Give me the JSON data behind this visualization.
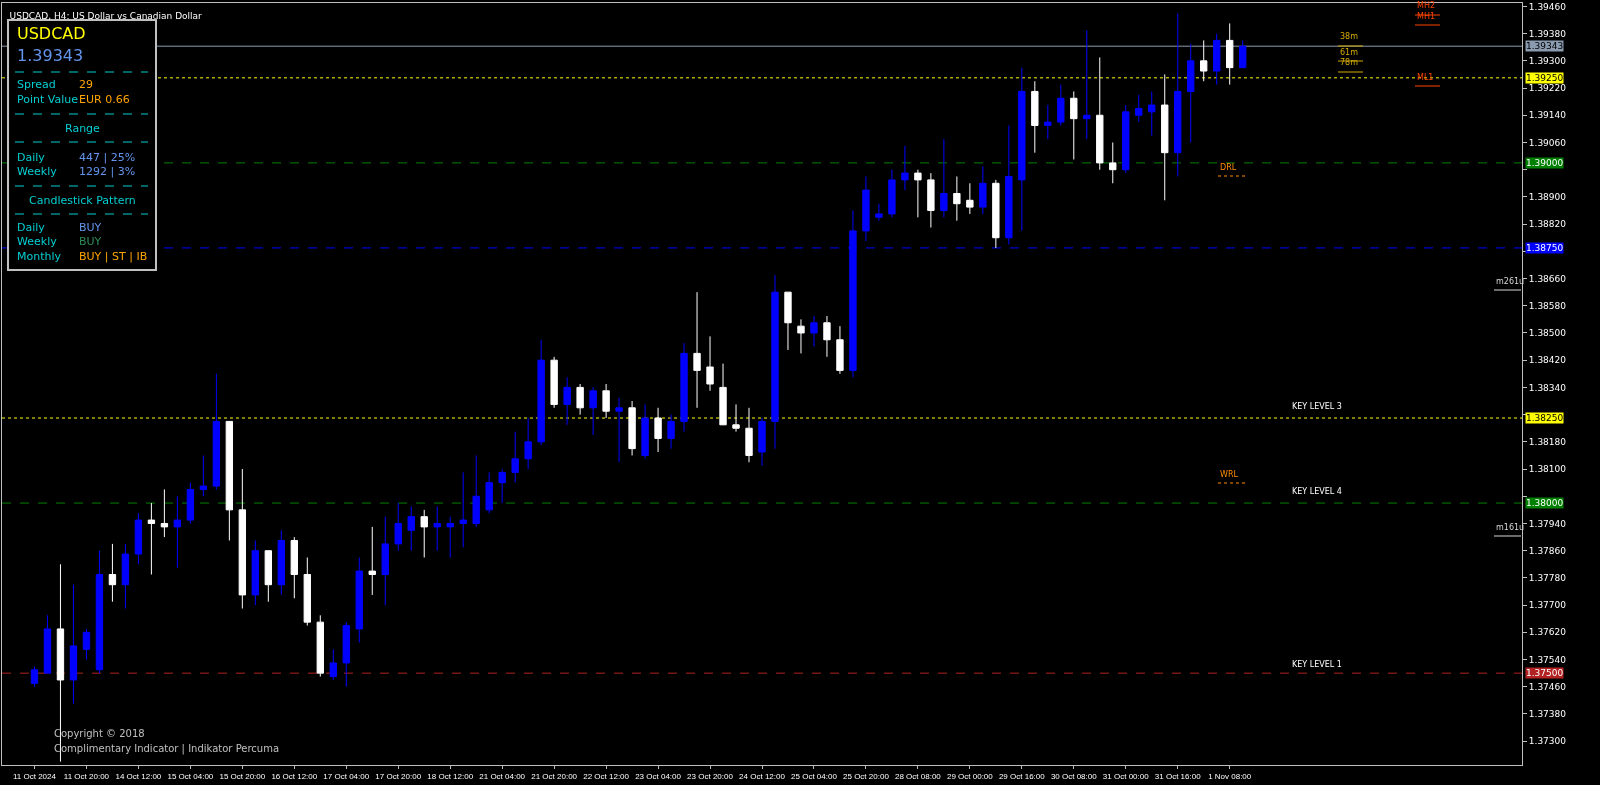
{
  "chart_data": {
    "type": "candlestick",
    "title": "USDCAD, H4: US Dollar vs Canadian Dollar",
    "categories": [
      "11 Oct 2024",
      null,
      null,
      null,
      "11 Oct 20:00",
      null,
      null,
      null,
      "14 Oct 12:00",
      null,
      null,
      null,
      "15 Oct 04:00",
      null,
      null,
      null,
      "15 Oct 20:00",
      null,
      null,
      null,
      "16 Oct 12:00",
      null,
      null,
      null,
      "17 Oct 04:00",
      null,
      null,
      null,
      "17 Oct 20:00",
      null,
      null,
      null,
      "18 Oct 12:00",
      null,
      null,
      null,
      "21 Oct 04:00",
      null,
      null,
      null,
      "21 Oct 20:00",
      null,
      null,
      null,
      "22 Oct 12:00",
      null,
      null,
      null,
      "23 Oct 04:00",
      null,
      null,
      null,
      "23 Oct 20:00",
      null,
      null,
      null,
      "24 Oct 12:00",
      null,
      null,
      null,
      "25 Oct 04:00",
      null,
      null,
      null,
      "25 Oct 20:00",
      null,
      null,
      null,
      "28 Oct 08:00",
      null,
      null,
      null,
      "29 Oct 00:00",
      null,
      null,
      null,
      "29 Oct 16:00",
      null,
      null,
      null,
      "30 Oct 08:00",
      null,
      null,
      null,
      "31 Oct 00:00",
      null,
      null,
      null,
      "31 Oct 16:00",
      null,
      null,
      null,
      "1 Nov 08:00",
      null,
      null,
      null,
      null,
      null,
      null,
      null,
      null,
      null,
      null,
      null,
      null,
      null,
      null,
      null,
      null,
      null,
      null,
      null,
      null,
      null,
      null
    ],
    "ohlc": [
      [
        1.3747,
        1.3752,
        1.3746,
        1.3751
      ],
      [
        1.375,
        1.3767,
        1.375,
        1.3763
      ],
      [
        1.3763,
        1.3782,
        1.3724,
        1.3748
      ],
      [
        1.3748,
        1.3776,
        1.3741,
        1.3758
      ],
      [
        1.3757,
        1.3763,
        1.3754,
        1.3762
      ],
      [
        1.3751,
        1.3786,
        1.375,
        1.3779
      ],
      [
        1.3779,
        1.3788,
        1.3771,
        1.3776
      ],
      [
        1.3776,
        1.3788,
        1.3769,
        1.3785
      ],
      [
        1.3785,
        1.3797,
        1.3782,
        1.3795
      ],
      [
        1.3795,
        1.38,
        1.3779,
        1.3794
      ],
      [
        1.3794,
        1.3804,
        1.379,
        1.3793
      ],
      [
        1.3793,
        1.3802,
        1.3781,
        1.3795
      ],
      [
        1.3795,
        1.3806,
        1.3794,
        1.3804
      ],
      [
        1.3804,
        1.3814,
        1.3802,
        1.3805
      ],
      [
        1.3805,
        1.3838,
        1.3804,
        1.3824
      ],
      [
        1.3824,
        1.3824,
        1.3789,
        1.3798
      ],
      [
        1.3798,
        1.381,
        1.3769,
        1.3773
      ],
      [
        1.3773,
        1.3789,
        1.377,
        1.3786
      ],
      [
        1.3786,
        1.3786,
        1.3771,
        1.3776
      ],
      [
        1.3776,
        1.3792,
        1.3773,
        1.3789
      ],
      [
        1.3789,
        1.379,
        1.3772,
        1.3779
      ],
      [
        1.3779,
        1.3784,
        1.3764,
        1.3765
      ],
      [
        1.3765,
        1.3767,
        1.3749,
        1.375
      ],
      [
        1.3749,
        1.3757,
        1.3748,
        1.3753
      ],
      [
        1.3753,
        1.3765,
        1.3746,
        1.3764
      ],
      [
        1.3763,
        1.3784,
        1.3759,
        1.378
      ],
      [
        1.378,
        1.3793,
        1.3773,
        1.3779
      ],
      [
        1.3779,
        1.3796,
        1.377,
        1.3788
      ],
      [
        1.3788,
        1.38,
        1.3786,
        1.3794
      ],
      [
        1.3792,
        1.3799,
        1.3786,
        1.3796
      ],
      [
        1.3796,
        1.3798,
        1.3784,
        1.3793
      ],
      [
        1.3793,
        1.3799,
        1.3786,
        1.3794
      ],
      [
        1.3793,
        1.3796,
        1.3784,
        1.3794
      ],
      [
        1.3794,
        1.3809,
        1.3787,
        1.3795
      ],
      [
        1.3794,
        1.3814,
        1.3793,
        1.3802
      ],
      [
        1.3798,
        1.3809,
        1.3797,
        1.3806
      ],
      [
        1.3806,
        1.381,
        1.38,
        1.3809
      ],
      [
        1.3809,
        1.3821,
        1.3806,
        1.3813
      ],
      [
        1.3813,
        1.3825,
        1.381,
        1.3818
      ],
      [
        1.3818,
        1.3848,
        1.3817,
        1.3842
      ],
      [
        1.3842,
        1.3843,
        1.3828,
        1.3829
      ],
      [
        1.3829,
        1.3837,
        1.3823,
        1.3834
      ],
      [
        1.3834,
        1.3835,
        1.3826,
        1.3828
      ],
      [
        1.3828,
        1.3834,
        1.382,
        1.3833
      ],
      [
        1.3833,
        1.3835,
        1.3825,
        1.3827
      ],
      [
        1.3827,
        1.3831,
        1.3812,
        1.3828
      ],
      [
        1.3828,
        1.383,
        1.3814,
        1.3816
      ],
      [
        1.3814,
        1.3829,
        1.3813,
        1.3825
      ],
      [
        1.3825,
        1.3828,
        1.3815,
        1.3819
      ],
      [
        1.3819,
        1.3826,
        1.3816,
        1.3824
      ],
      [
        1.3824,
        1.3847,
        1.3821,
        1.3844
      ],
      [
        1.3844,
        1.3862,
        1.3828,
        1.3839
      ],
      [
        1.384,
        1.3849,
        1.3833,
        1.3835
      ],
      [
        1.3834,
        1.3841,
        1.3823,
        1.3823
      ],
      [
        1.3823,
        1.3829,
        1.3821,
        1.3822
      ],
      [
        1.3822,
        1.3828,
        1.3812,
        1.3814
      ],
      [
        1.3815,
        1.3825,
        1.3811,
        1.3824
      ],
      [
        1.3824,
        1.3867,
        1.3816,
        1.3862
      ],
      [
        1.3862,
        1.3862,
        1.3845,
        1.3853
      ],
      [
        1.3852,
        1.3854,
        1.3844,
        1.385
      ],
      [
        1.385,
        1.3855,
        1.3846,
        1.3853
      ],
      [
        1.3853,
        1.3855,
        1.3843,
        1.3848
      ],
      [
        1.3848,
        1.3852,
        1.3838,
        1.3839
      ],
      [
        1.3839,
        1.3886,
        1.3837,
        1.388
      ],
      [
        1.388,
        1.3896,
        1.3877,
        1.3892
      ],
      [
        1.3884,
        1.3888,
        1.3883,
        1.3885
      ],
      [
        1.3885,
        1.3898,
        1.3884,
        1.3895
      ],
      [
        1.3895,
        1.3905,
        1.3892,
        1.3897
      ],
      [
        1.3897,
        1.3898,
        1.3884,
        1.3895
      ],
      [
        1.3895,
        1.3897,
        1.3881,
        1.3886
      ],
      [
        1.3886,
        1.3907,
        1.3884,
        1.3891
      ],
      [
        1.3891,
        1.3896,
        1.3883,
        1.3888
      ],
      [
        1.3889,
        1.3894,
        1.3885,
        1.3887
      ],
      [
        1.3887,
        1.3899,
        1.3885,
        1.3894
      ],
      [
        1.3894,
        1.3895,
        1.3875,
        1.3878
      ],
      [
        1.3878,
        1.3911,
        1.3876,
        1.3896
      ],
      [
        1.3895,
        1.3928,
        1.388,
        1.3921
      ],
      [
        1.3921,
        1.3924,
        1.3903,
        1.3911
      ],
      [
        1.3911,
        1.3917,
        1.3907,
        1.3912
      ],
      [
        1.3912,
        1.3923,
        1.3911,
        1.3919
      ],
      [
        1.3919,
        1.3921,
        1.3901,
        1.3913
      ],
      [
        1.3913,
        1.3939,
        1.3907,
        1.3914
      ],
      [
        1.3914,
        1.3931,
        1.3898,
        1.39
      ],
      [
        1.39,
        1.3906,
        1.3894,
        1.3898
      ],
      [
        1.3898,
        1.3917,
        1.3897,
        1.3915
      ],
      [
        1.3914,
        1.392,
        1.3912,
        1.3916
      ],
      [
        1.3915,
        1.3921,
        1.3908,
        1.3917
      ],
      [
        1.3917,
        1.3926,
        1.3889,
        1.3903
      ],
      [
        1.3903,
        1.3944,
        1.3896,
        1.3921
      ],
      [
        1.3921,
        1.3935,
        1.3906,
        1.393
      ],
      [
        1.393,
        1.3936,
        1.3924,
        1.3927
      ],
      [
        1.3927,
        1.3938,
        1.3923,
        1.3936
      ],
      [
        1.3936,
        1.3941,
        1.3923,
        1.3928
      ],
      [
        1.3928,
        1.3936,
        1.3928,
        1.39343
      ],
      null,
      null,
      null,
      null,
      null,
      null,
      null,
      null,
      null,
      null,
      null,
      null,
      null,
      null,
      null,
      null,
      null,
      null,
      null,
      null,
      null
    ],
    "colors": [
      "#0000ff",
      "#0000ff",
      "#ffffff",
      "#0000ff",
      "#0000ff",
      "#0000ff",
      "#ffffff",
      "#0000ff",
      "#0000ff",
      "#ffffff",
      "#ffffff",
      "#0000ff",
      "#0000ff",
      "#0000ff",
      "#0000ff",
      "#ffffff",
      "#ffffff",
      "#0000ff",
      "#ffffff",
      "#0000ff",
      "#ffffff",
      "#ffffff",
      "#ffffff",
      "#0000ff",
      "#0000ff",
      "#0000ff",
      "#ffffff",
      "#0000ff",
      "#0000ff",
      "#0000ff",
      "#ffffff",
      "#0000ff",
      "#0000ff",
      "#0000ff",
      "#0000ff",
      "#0000ff",
      "#0000ff",
      "#0000ff",
      "#0000ff",
      "#0000ff",
      "#ffffff",
      "#0000ff",
      "#ffffff",
      "#0000ff",
      "#ffffff",
      "#0000ff",
      "#ffffff",
      "#0000ff",
      "#ffffff",
      "#0000ff",
      "#0000ff",
      "#ffffff",
      "#ffffff",
      "#ffffff",
      "#ffffff",
      "#ffffff",
      "#0000ff",
      "#0000ff",
      "#ffffff",
      "#ffffff",
      "#0000ff",
      "#ffffff",
      "#ffffff",
      "#0000ff",
      "#0000ff",
      "#0000ff",
      "#0000ff",
      "#0000ff",
      "#ffffff",
      "#ffffff",
      "#0000ff",
      "#ffffff",
      "#ffffff",
      "#0000ff",
      "#ffffff",
      "#0000ff",
      "#0000ff",
      "#ffffff",
      "#0000ff",
      "#0000ff",
      "#ffffff",
      "#0000ff",
      "#ffffff",
      "#ffffff",
      "#0000ff",
      "#0000ff",
      "#0000ff",
      "#ffffff",
      "#0000ff",
      "#0000ff",
      "#ffffff",
      "#0000ff",
      "#ffffff",
      "#0000ff",
      null,
      null,
      null,
      null,
      null,
      null,
      null,
      null,
      null,
      null,
      null,
      null,
      null,
      null,
      null,
      null,
      null,
      null,
      null,
      null,
      null
    ],
    "ylim": [
      1.3723,
      1.3947
    ],
    "yticks": [
      {
        "value": 1.373,
        "label": "1.37300"
      },
      {
        "value": 1.3738,
        "label": "1.37380"
      },
      {
        "value": 1.3746,
        "label": "1.37460"
      },
      {
        "value": 1.3754,
        "label": "1.37540"
      },
      {
        "value": 1.3762,
        "label": "1.37620"
      },
      {
        "value": 1.377,
        "label": "1.37700"
      },
      {
        "value": 1.3778,
        "label": "1.37780"
      },
      {
        "value": 1.3786,
        "label": "1.37860"
      },
      {
        "value": 1.3794,
        "label": "1.37940"
      },
      {
        "value": 1.3802,
        "label": null
      },
      {
        "value": 1.381,
        "label": "1.38100"
      },
      {
        "value": 1.3818,
        "label": "1.38180"
      },
      {
        "value": 1.3826,
        "label": null
      },
      {
        "value": 1.3834,
        "label": "1.38340"
      },
      {
        "value": 1.3842,
        "label": "1.38420"
      },
      {
        "value": 1.385,
        "label": "1.38500"
      },
      {
        "value": 1.3858,
        "label": "1.38580"
      },
      {
        "value": 1.3866,
        "label": "1.38660"
      },
      {
        "value": 1.3874,
        "label": null
      },
      {
        "value": 1.3882,
        "label": "1.38820"
      },
      {
        "value": 1.389,
        "label": "1.38900"
      },
      {
        "value": 1.3898,
        "label": null
      },
      {
        "value": 1.3906,
        "label": "1.39060"
      },
      {
        "value": 1.3914,
        "label": "1.39140"
      },
      {
        "value": 1.3922,
        "label": "1.39220"
      },
      {
        "value": 1.393,
        "label": "1.39300"
      },
      {
        "value": 1.3938,
        "label": "1.39380"
      },
      {
        "value": 1.3946,
        "label": "1.39460"
      }
    ],
    "ref_lines": [
      {
        "axis": "y",
        "value": 1.3925,
        "label": "1.39250",
        "color": "#ffff00",
        "line_style": "dotted"
      },
      {
        "axis": "y",
        "value": 1.39,
        "label": "1.39000",
        "color": "#008000",
        "line_style": "dashed"
      },
      {
        "axis": "y",
        "value": 1.3875,
        "label": "1.38750",
        "color": "#0000ff",
        "line_style": "dashed"
      },
      {
        "axis": "y",
        "value": 1.3825,
        "label": "1.38250",
        "color": "#ffff00",
        "line_style": "dotted"
      },
      {
        "axis": "y",
        "value": 1.38,
        "label": "1.38000",
        "color": "#008000",
        "line_style": "dashed"
      },
      {
        "axis": "y",
        "value": 1.375,
        "label": "1.37500",
        "color": "#b22222",
        "line_style": "dashed"
      },
      {
        "axis": "y",
        "value": 1.39343,
        "label": "1.39343",
        "color": "#8a9bb0",
        "line_style": "solid"
      }
    ],
    "annotations": [
      "USDCAD",
      "1.39343",
      "Spread",
      "29",
      "Point Value",
      "EUR 0.66",
      "Range",
      "Daily",
      "447 | 25%",
      "Weekly",
      "1292 | 3%",
      "Candlestick Pattern",
      "Daily",
      "BUY",
      "Weekly",
      "BUY",
      "Monthly",
      "BUY | ST | IB",
      "Copyright © 2018",
      "Complimentary Indicator | Indikator Percuma",
      "38m",
      "61m",
      "78m",
      "MH2",
      "MH1",
      "ML1",
      "DRL",
      "WRL",
      "m261u",
      "m161u",
      "KEY LEVEL 3",
      "KEY LEVEL 4",
      "KEY LEVEL 1"
    ]
  }
}
